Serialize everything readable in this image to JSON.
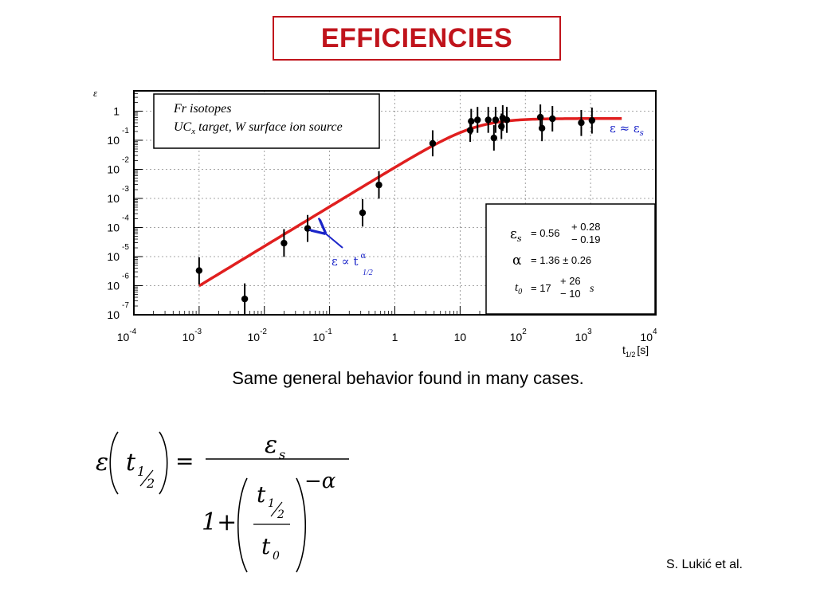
{
  "slide": {
    "title": "EFFICIENCIES",
    "caption": "Same general behavior found in many cases.",
    "credit": "S. Lukić et al.",
    "accent_color": "#c0141c"
  },
  "chart_data": {
    "type": "scatter",
    "title": "",
    "ylabel": "ε",
    "xlabel": "t1/2 [s]",
    "xlabel_main": "t",
    "xlabel_sub": "1/2",
    "xlabel_unit": "[s]",
    "x_scale": "log",
    "y_scale": "log",
    "xlim": [
      0.0001,
      10000
    ],
    "ylim": [
      1e-07,
      5
    ],
    "grid": true,
    "x_ticks": [
      {
        "value": 0.0001,
        "base": "10",
        "exp": "-4"
      },
      {
        "value": 0.001,
        "base": "10",
        "exp": "-3"
      },
      {
        "value": 0.01,
        "base": "10",
        "exp": "-2"
      },
      {
        "value": 0.1,
        "base": "10",
        "exp": "-1"
      },
      {
        "value": 1,
        "base": "1",
        "exp": ""
      },
      {
        "value": 10,
        "base": "10",
        "exp": ""
      },
      {
        "value": 100,
        "base": "10",
        "exp": "2"
      },
      {
        "value": 1000,
        "base": "10",
        "exp": "3"
      },
      {
        "value": 10000,
        "base": "10",
        "exp": "4"
      }
    ],
    "y_ticks": [
      {
        "value": 1,
        "base": "1",
        "exp": ""
      },
      {
        "value": 0.1,
        "base": "10",
        "exp": "-1"
      },
      {
        "value": 0.01,
        "base": "10",
        "exp": "-2"
      },
      {
        "value": 0.001,
        "base": "10",
        "exp": "-3"
      },
      {
        "value": 0.0001,
        "base": "10",
        "exp": "-4"
      },
      {
        "value": 1e-05,
        "base": "10",
        "exp": "-5"
      },
      {
        "value": 1e-06,
        "base": "10",
        "exp": "-6"
      },
      {
        "value": 1e-07,
        "base": "10",
        "exp": "-7"
      }
    ],
    "series": [
      {
        "points": [
          {
            "x": 0.001,
            "y": 3.3e-06,
            "lo": 1.1e-06,
            "hi": 9.5e-06
          },
          {
            "x": 0.005,
            "y": 3.5e-07,
            "lo": 1e-07,
            "hi": 1.2e-06
          },
          {
            "x": 0.02,
            "y": 2.9e-05,
            "lo": 9.8e-06,
            "hi": 8.8e-05
          },
          {
            "x": 0.046,
            "y": 9.3e-05,
            "lo": 3.2e-05,
            "hi": 0.00027
          },
          {
            "x": 0.32,
            "y": 0.00032,
            "lo": 0.000108,
            "hi": 0.00094
          },
          {
            "x": 0.57,
            "y": 0.0029,
            "lo": 0.00098,
            "hi": 0.0087
          },
          {
            "x": 3.8,
            "y": 0.078,
            "lo": 0.028,
            "hi": 0.22
          },
          {
            "x": 14.3,
            "y": 0.22,
            "lo": 0.088,
            "hi": 0.57
          },
          {
            "x": 14.8,
            "y": 0.45,
            "lo": 0.16,
            "hi": 1.2
          },
          {
            "x": 18.5,
            "y": 0.5,
            "lo": 0.18,
            "hi": 1.4
          },
          {
            "x": 27,
            "y": 0.5,
            "lo": 0.18,
            "hi": 1.4
          },
          {
            "x": 33,
            "y": 0.12,
            "lo": 0.044,
            "hi": 0.33
          },
          {
            "x": 35,
            "y": 0.5,
            "lo": 0.18,
            "hi": 1.4
          },
          {
            "x": 43,
            "y": 0.3,
            "lo": 0.11,
            "hi": 0.83
          },
          {
            "x": 45,
            "y": 0.58,
            "lo": 0.21,
            "hi": 1.6
          },
          {
            "x": 52,
            "y": 0.5,
            "lo": 0.18,
            "hi": 1.4
          },
          {
            "x": 170,
            "y": 0.62,
            "lo": 0.22,
            "hi": 1.7
          },
          {
            "x": 180,
            "y": 0.26,
            "lo": 0.093,
            "hi": 0.71
          },
          {
            "x": 260,
            "y": 0.55,
            "lo": 0.2,
            "hi": 1.5
          },
          {
            "x": 720,
            "y": 0.4,
            "lo": 0.14,
            "hi": 1.1
          },
          {
            "x": 1050,
            "y": 0.48,
            "lo": 0.17,
            "hi": 1.33
          }
        ]
      }
    ],
    "fit": {
      "eps_s": 0.56,
      "alpha": 1.36,
      "t0": 17,
      "x_range": [
        0.001,
        3000
      ],
      "color": "#e01f1f"
    },
    "legend": {
      "placement": "top-left",
      "line1": "Fr isotopes",
      "line2_pre": "UC",
      "line2_sub": "x",
      "line2_post": " target, W surface ion source"
    },
    "fit_box": {
      "placement": "bottom-right",
      "eps_symbol": "ε",
      "eps_sub": "s",
      "eps_value": "= 0.56",
      "eps_plus": "+ 0.28",
      "eps_minus": "− 0.19",
      "alpha_symbol": "α",
      "alpha_value": "= 1.36 ± 0.26",
      "t_symbol": "t",
      "t_sub": "0",
      "t_value": "= 17",
      "t_plus": "+ 26",
      "t_minus": "− 10",
      "t_unit": "s"
    },
    "annotations": {
      "plateau_lhs": "ε ≈ ε",
      "plateau_sub": "s",
      "slope_eps": "ε ∝ t",
      "slope_exp": "α",
      "slope_sub": "1/2",
      "color": "#1a24c8"
    }
  },
  "formula": {
    "eps": "ε",
    "t": "t",
    "half_num": "1",
    "half_den": "2",
    "equals": "=",
    "num_eps": "ε",
    "num_sub": "s",
    "one_plus": "1+",
    "exponent": "−α",
    "den_t": "t",
    "den_sub": "0"
  }
}
